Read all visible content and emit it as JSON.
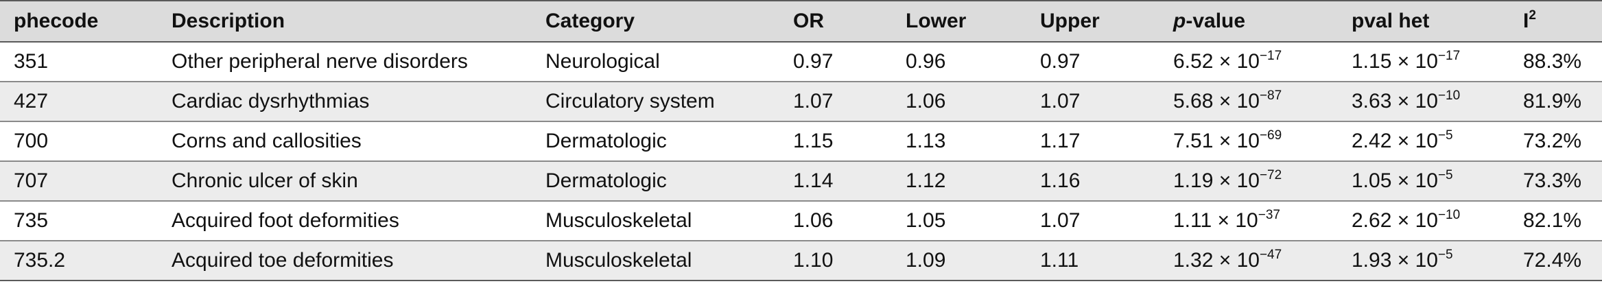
{
  "headers": {
    "phecode": "phecode",
    "description": "Description",
    "category": "Category",
    "or": "OR",
    "lower": "Lower",
    "upper": "Upper",
    "pvalue_italic": "p",
    "pvalue_rest": "-value",
    "pval_het": "pval het",
    "i2_base": "I",
    "i2_sup": "2"
  },
  "rows": [
    {
      "phecode": "351",
      "description": "Other peripheral nerve disorders",
      "category": "Neurological",
      "or": "0.97",
      "lower": "0.96",
      "upper": "0.97",
      "pvalue_mantissa": "6.52 × 10",
      "pvalue_exp": "−17",
      "pval_het_mantissa": "1.15 × 10",
      "pval_het_exp": "−17",
      "i2": "88.3%"
    },
    {
      "phecode": "427",
      "description": "Cardiac dysrhythmias",
      "category": "Circulatory system",
      "or": "1.07",
      "lower": "1.06",
      "upper": "1.07",
      "pvalue_mantissa": "5.68 × 10",
      "pvalue_exp": "−87",
      "pval_het_mantissa": "3.63 × 10",
      "pval_het_exp": "−10",
      "i2": "81.9%"
    },
    {
      "phecode": "700",
      "description": "Corns and callosities",
      "category": "Dermatologic",
      "or": "1.15",
      "lower": "1.13",
      "upper": "1.17",
      "pvalue_mantissa": "7.51 × 10",
      "pvalue_exp": "−69",
      "pval_het_mantissa": "2.42 × 10",
      "pval_het_exp": "−5",
      "i2": "73.2%"
    },
    {
      "phecode": "707",
      "description": "Chronic ulcer of skin",
      "category": "Dermatologic",
      "or": "1.14",
      "lower": "1.12",
      "upper": "1.16",
      "pvalue_mantissa": "1.19 × 10",
      "pvalue_exp": "−72",
      "pval_het_mantissa": "1.05 × 10",
      "pval_het_exp": "−5",
      "i2": "73.3%"
    },
    {
      "phecode": "735",
      "description": "Acquired foot deformities",
      "category": "Musculoskeletal",
      "or": "1.06",
      "lower": "1.05",
      "upper": "1.07",
      "pvalue_mantissa": "1.11 × 10",
      "pvalue_exp": "−37",
      "pval_het_mantissa": "2.62 × 10",
      "pval_het_exp": "−10",
      "i2": "82.1%"
    },
    {
      "phecode": "735.2",
      "description": "Acquired toe deformities",
      "category": "Musculoskeletal",
      "or": "1.10",
      "lower": "1.09",
      "upper": "1.11",
      "pvalue_mantissa": "1.32 × 10",
      "pvalue_exp": "−47",
      "pval_het_mantissa": "1.93 × 10",
      "pval_het_exp": "−5",
      "i2": "72.4%"
    }
  ]
}
